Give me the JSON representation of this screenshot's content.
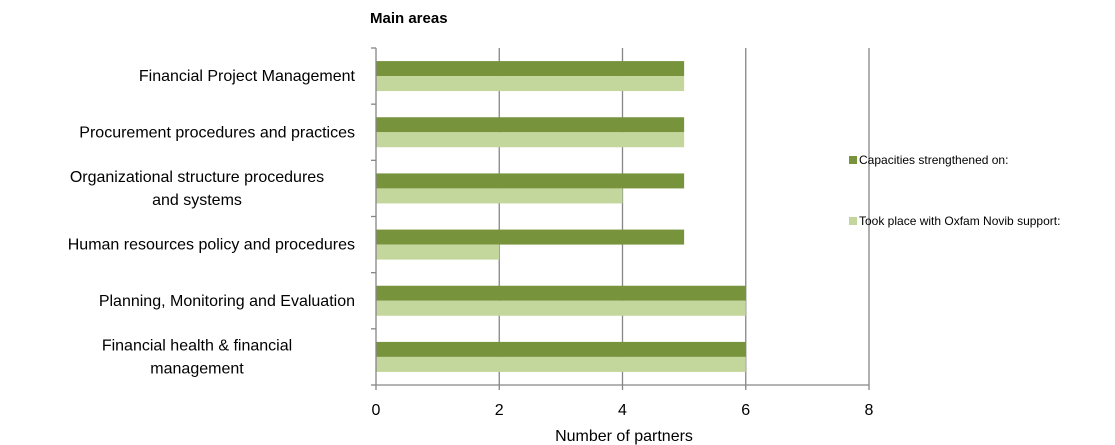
{
  "chart_data": {
    "type": "bar",
    "orientation": "horizontal",
    "title": "Main areas",
    "xlabel": "Number of partners",
    "ylabel": "",
    "xlim": [
      0,
      8
    ],
    "x_ticks": [
      "0",
      "2",
      "4",
      "6",
      "8"
    ],
    "grid": "vertical major gridlines",
    "legend_position": "right",
    "categories": [
      [
        "Financial Project Management"
      ],
      [
        "Procurement procedures and practices"
      ],
      [
        "Organizational structure procedures",
        "and systems"
      ],
      [
        "Human resources policy and procedures"
      ],
      [
        "Planning, Monitoring and Evaluation"
      ],
      [
        "Financial health & financial",
        "management"
      ]
    ],
    "series": [
      {
        "name": "Capacities strengthened on:",
        "color": "#77933c",
        "values": [
          5,
          5,
          5,
          5,
          6,
          6
        ]
      },
      {
        "name": "Took place with Oxfam Novib support:",
        "color": "#c3d69b",
        "values": [
          5,
          5,
          4,
          2,
          6,
          6
        ]
      }
    ]
  }
}
